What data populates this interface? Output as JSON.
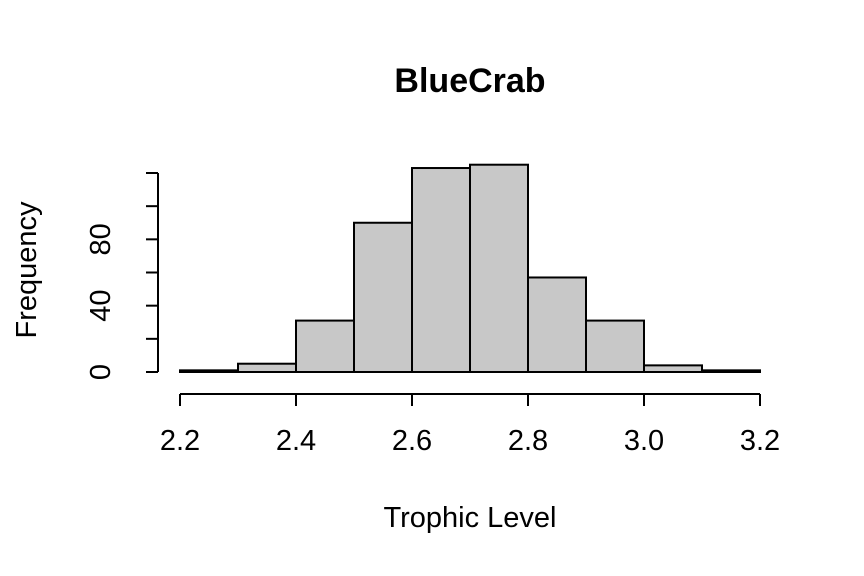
{
  "chart_data": {
    "type": "bar",
    "subtype": "histogram",
    "title": "BlueCrab",
    "xlabel": "Trophic Level",
    "ylabel": "Frequency",
    "bins": [
      {
        "x0": 2.2,
        "x1": 2.3,
        "count": 1
      },
      {
        "x0": 2.3,
        "x1": 2.4,
        "count": 5
      },
      {
        "x0": 2.4,
        "x1": 2.5,
        "count": 31
      },
      {
        "x0": 2.5,
        "x1": 2.6,
        "count": 90
      },
      {
        "x0": 2.6,
        "x1": 2.7,
        "count": 123
      },
      {
        "x0": 2.7,
        "x1": 2.8,
        "count": 125
      },
      {
        "x0": 2.8,
        "x1": 2.9,
        "count": 57
      },
      {
        "x0": 2.9,
        "x1": 3.0,
        "count": 31
      },
      {
        "x0": 3.0,
        "x1": 3.1,
        "count": 4
      },
      {
        "x0": 3.1,
        "x1": 3.2,
        "count": 1
      }
    ],
    "xlim": [
      2.2,
      3.2
    ],
    "ylim": [
      0,
      120
    ],
    "x_ticks": [
      2.2,
      2.4,
      2.6,
      2.8,
      3.0,
      3.2
    ],
    "x_tick_labels": [
      "2.2",
      "2.4",
      "2.6",
      "2.8",
      "3.0",
      "3.2"
    ],
    "y_ticks": [
      0,
      20,
      40,
      60,
      80,
      100,
      120
    ],
    "y_tick_labels": [
      "0",
      "",
      "40",
      "",
      "80",
      "",
      ""
    ],
    "bar_fill": "#c8c8c8",
    "bar_stroke": "#000000",
    "grid": false,
    "legend": "none"
  }
}
